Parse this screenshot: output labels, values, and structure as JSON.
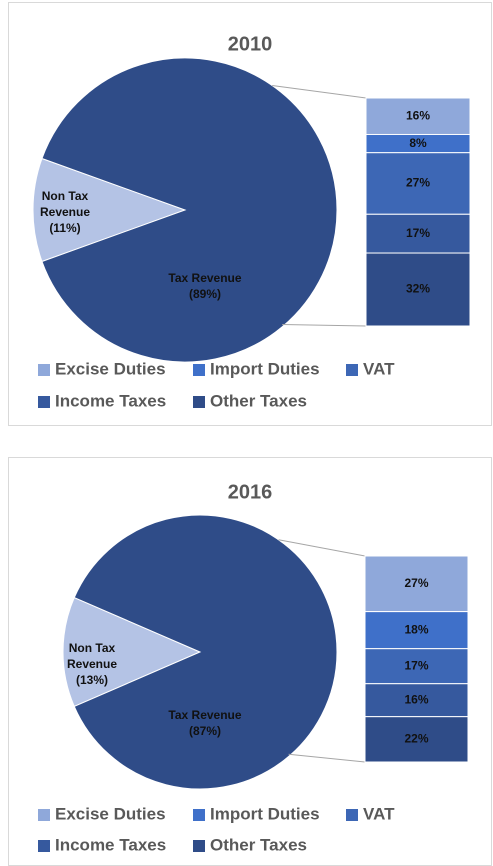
{
  "chart_data": [
    {
      "type": "bar-of-pie",
      "title": "2010",
      "categories": [
        "Non Tax Revenue",
        "Tax Revenue"
      ],
      "values": [
        11,
        89
      ],
      "value_labels": [
        "(11%)",
        "(89%)"
      ],
      "colors": [
        "#b4c3e5",
        "#2f4c88"
      ],
      "bar": {
        "categories": [
          "Excise Duties",
          "Import Duties",
          "VAT",
          "Income Taxes",
          "Other Taxes"
        ],
        "values": [
          16,
          8,
          27,
          17,
          32
        ],
        "value_labels": [
          "16%",
          "8%",
          "27%",
          "17%",
          "32%"
        ],
        "colors": [
          "#8fa8da",
          "#3f70c9",
          "#3d67b5",
          "#36599e",
          "#2f4c88"
        ]
      }
    },
    {
      "type": "bar-of-pie",
      "title": "2016",
      "categories": [
        "Non Tax Revenue",
        "Tax Revenue"
      ],
      "values": [
        13,
        87
      ],
      "value_labels": [
        "(13%)",
        "(87%)"
      ],
      "colors": [
        "#b4c3e5",
        "#2f4c88"
      ],
      "bar": {
        "categories": [
          "Excise Duties",
          "Import Duties",
          "VAT",
          "Income Taxes",
          "Other Taxes"
        ],
        "values": [
          27,
          18,
          17,
          16,
          22
        ],
        "value_labels": [
          "27%",
          "18%",
          "17%",
          "16%",
          "22%"
        ],
        "colors": [
          "#8fa8da",
          "#3f70c9",
          "#3d67b5",
          "#36599e",
          "#2f4c88"
        ]
      }
    }
  ]
}
